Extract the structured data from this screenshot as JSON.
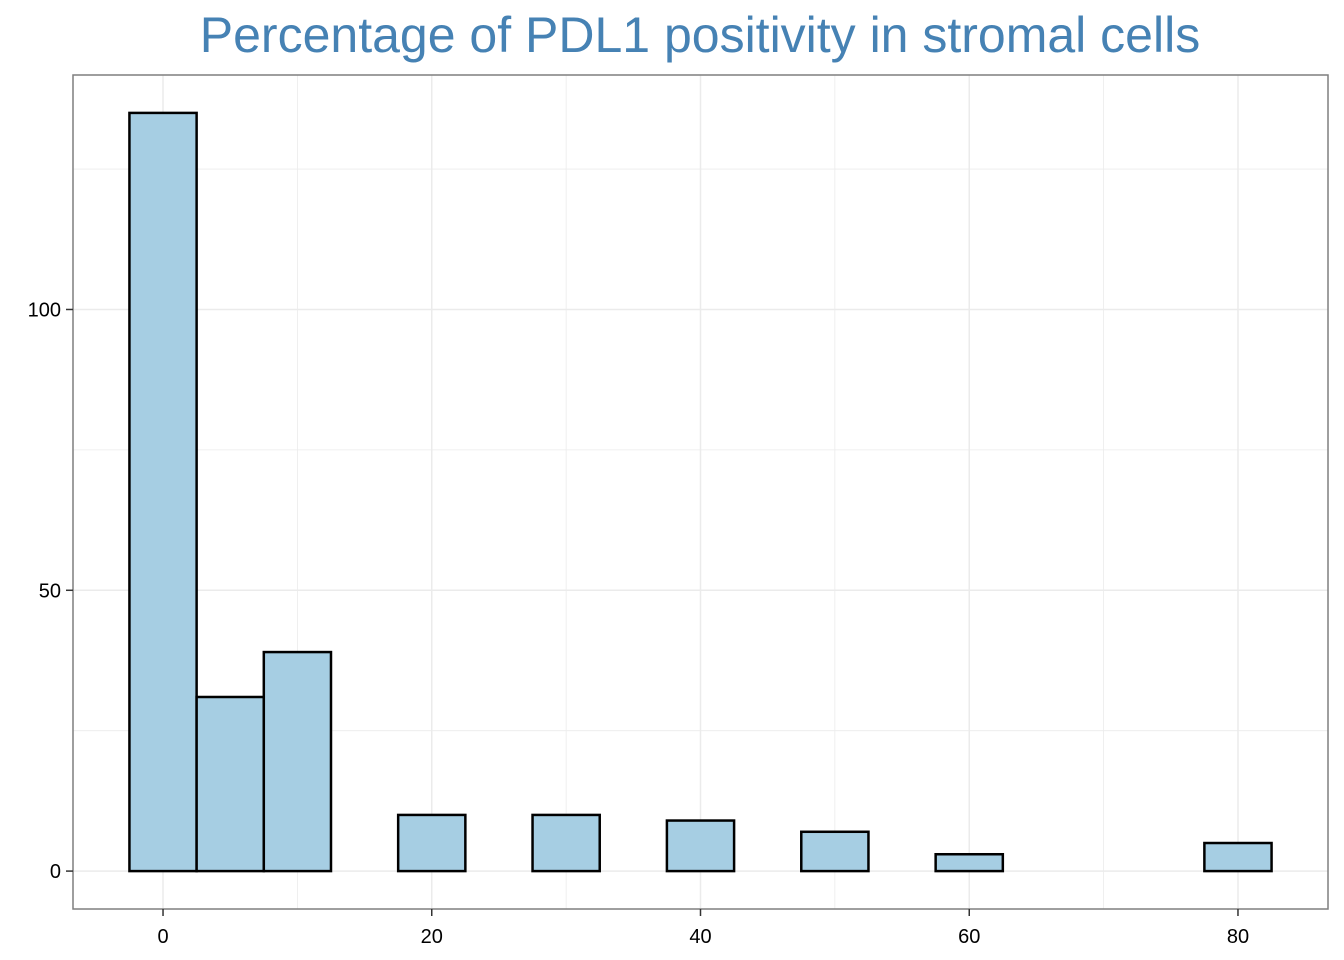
{
  "chart_data": {
    "type": "bar",
    "title": "Percentage of PDL1 positivity in stromal cells",
    "xlabel": "",
    "ylabel": "",
    "bin_width": 5,
    "bins": [
      {
        "center": 0,
        "count": 135
      },
      {
        "center": 5,
        "count": 31
      },
      {
        "center": 10,
        "count": 39
      },
      {
        "center": 15,
        "count": 0
      },
      {
        "center": 20,
        "count": 10
      },
      {
        "center": 25,
        "count": 0
      },
      {
        "center": 30,
        "count": 10
      },
      {
        "center": 35,
        "count": 0
      },
      {
        "center": 40,
        "count": 9
      },
      {
        "center": 45,
        "count": 0
      },
      {
        "center": 50,
        "count": 7
      },
      {
        "center": 55,
        "count": 0
      },
      {
        "center": 60,
        "count": 3
      },
      {
        "center": 65,
        "count": 0
      },
      {
        "center": 70,
        "count": 0
      },
      {
        "center": 75,
        "count": 0
      },
      {
        "center": 80,
        "count": 5
      }
    ],
    "xlim": [
      -6.7,
      86.7
    ],
    "ylim": [
      -6.75,
      141.75
    ],
    "x_ticks": [
      0,
      20,
      40,
      60,
      80
    ],
    "y_ticks": [
      0,
      50,
      100
    ],
    "grid": true,
    "colors": {
      "bar_fill": "#a6cee3",
      "bar_stroke": "#000000",
      "title": "#4682b4",
      "grid": "#ebebeb",
      "panel_border": "#7f7f7f"
    }
  }
}
